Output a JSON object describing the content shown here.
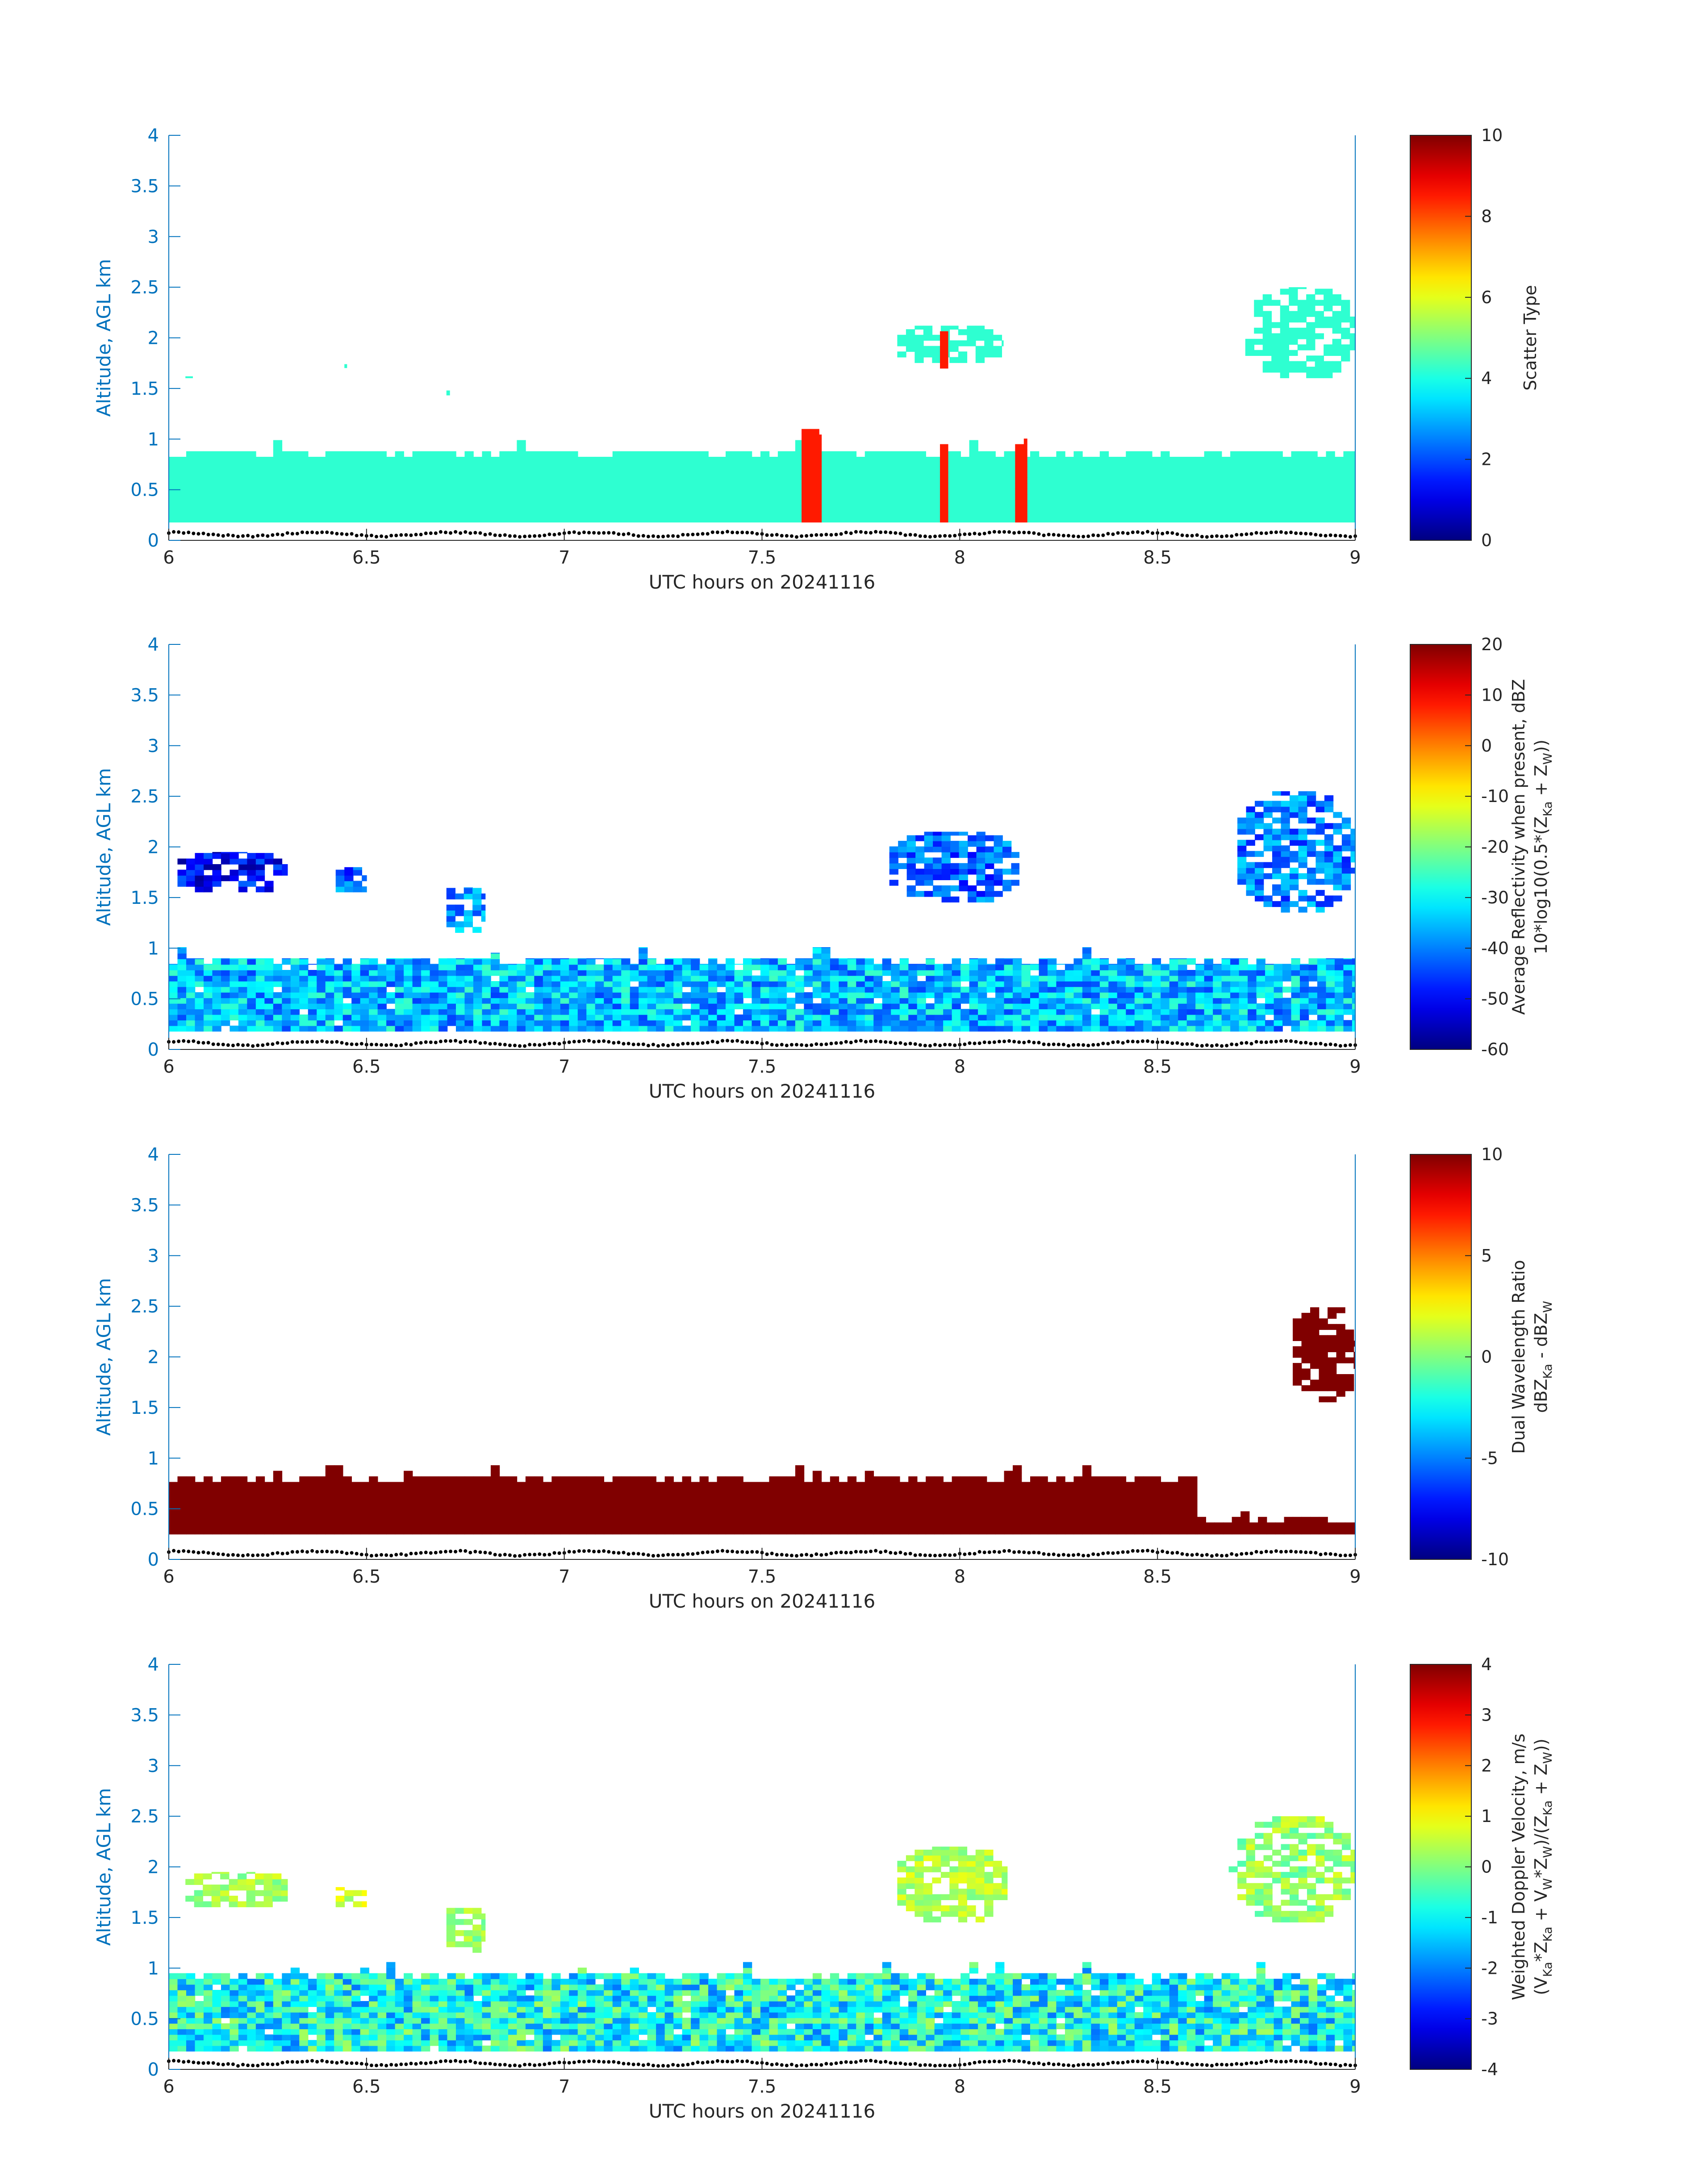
{
  "colors": {
    "axis_blue": "#0072BD",
    "scatter_cyan": "#1EF5D6",
    "scatter_red": "#FF4A10",
    "dwr_darkred": "#800000",
    "marker": "#000000"
  },
  "colormap": "jet",
  "chart_data": [
    {
      "type": "heatmap",
      "title": "",
      "xlabel": "UTC hours on 20241116",
      "ylabel": "Altitude, AGL km",
      "xlim": [
        6,
        9
      ],
      "ylim": [
        0,
        4
      ],
      "xticks": [
        "6",
        "6.5",
        "7",
        "7.5",
        "8",
        "8.5",
        "9"
      ],
      "yticks": [
        "0",
        "0.5",
        "1",
        "1.5",
        "2",
        "2.5",
        "3",
        "3.5",
        "4"
      ],
      "colorbar": {
        "label_lines": [
          "Scatter Type"
        ],
        "clim": [
          0,
          10
        ],
        "ticks": [
          "0",
          "2",
          "4",
          "6",
          "8",
          "10"
        ]
      },
      "regions": [
        {
          "kind": "layer",
          "x": [
            6.0,
            9.0
          ],
          "y": [
            0.18,
            0.88
          ],
          "value": 4.2,
          "noise": 0
        },
        {
          "kind": "layer",
          "x": [
            7.6,
            7.65
          ],
          "y": [
            0.18,
            1.1
          ],
          "value": 8.5,
          "noise": 0
        },
        {
          "kind": "layer",
          "x": [
            7.95,
            7.97
          ],
          "y": [
            0.18,
            0.95
          ],
          "value": 8.5,
          "noise": 0
        },
        {
          "kind": "layer",
          "x": [
            8.14,
            8.17
          ],
          "y": [
            0.18,
            0.95
          ],
          "value": 8.5,
          "noise": 0
        },
        {
          "kind": "cloud",
          "x": [
            7.82,
            8.11
          ],
          "y": [
            1.7,
            2.12
          ],
          "value": 4.2,
          "noise": 0
        },
        {
          "kind": "layer",
          "x": [
            7.95,
            7.97
          ],
          "y": [
            1.7,
            2.12
          ],
          "value": 8.5,
          "noise": 0
        },
        {
          "kind": "cloud",
          "x": [
            8.7,
            9.0
          ],
          "y": [
            1.55,
            2.5
          ],
          "value": 4.2,
          "noise": 0
        },
        {
          "kind": "cloud",
          "x": [
            6.02,
            6.06
          ],
          "y": [
            1.55,
            1.62
          ],
          "value": 4.2,
          "noise": 0
        },
        {
          "kind": "cloud",
          "x": [
            6.4,
            6.45
          ],
          "y": [
            1.65,
            1.74
          ],
          "value": 4.2,
          "noise": 0
        },
        {
          "kind": "cloud",
          "x": [
            6.68,
            6.71
          ],
          "y": [
            1.38,
            1.48
          ],
          "value": 4.2,
          "noise": 0
        }
      ]
    },
    {
      "type": "heatmap",
      "title": "",
      "xlabel": "UTC hours on 20241116",
      "ylabel": "Altitude, AGL km",
      "xlim": [
        6,
        9
      ],
      "ylim": [
        0,
        4
      ],
      "xticks": [
        "6",
        "6.5",
        "7",
        "7.5",
        "8",
        "8.5",
        "9"
      ],
      "yticks": [
        "0",
        "0.5",
        "1",
        "1.5",
        "2",
        "2.5",
        "3",
        "3.5",
        "4"
      ],
      "colorbar": {
        "label_lines": [
          "Average Reflectivity when present, dBZ",
          "10*log10(0.5*(Z_Ka + Z_W))"
        ],
        "clim": [
          -60,
          20
        ],
        "ticks": [
          "-60",
          "-50",
          "-40",
          "-30",
          "-20",
          "-10",
          "0",
          "10",
          "20"
        ]
      },
      "regions": [
        {
          "kind": "layer",
          "x": [
            6.0,
            9.0
          ],
          "y": [
            0.18,
            0.9
          ],
          "value": -35,
          "noise": 10
        },
        {
          "kind": "cloud",
          "x": [
            7.8,
            8.15
          ],
          "y": [
            1.4,
            2.15
          ],
          "value": -42,
          "noise": 8
        },
        {
          "kind": "cloud",
          "x": [
            8.68,
            9.0
          ],
          "y": [
            1.3,
            2.55
          ],
          "value": -40,
          "noise": 8
        },
        {
          "kind": "cloud",
          "x": [
            6.0,
            6.3
          ],
          "y": [
            1.5,
            1.95
          ],
          "value": -50,
          "noise": 8
        },
        {
          "kind": "cloud",
          "x": [
            6.4,
            6.5
          ],
          "y": [
            1.5,
            1.8
          ],
          "value": -42,
          "noise": 8
        },
        {
          "kind": "cloud",
          "x": [
            6.68,
            6.8
          ],
          "y": [
            1.1,
            1.6
          ],
          "value": -38,
          "noise": 8
        }
      ]
    },
    {
      "type": "heatmap",
      "title": "",
      "xlabel": "UTC hours on 20241116",
      "ylabel": "Altitude, AGL km",
      "xlim": [
        6,
        9
      ],
      "ylim": [
        0,
        4
      ],
      "xticks": [
        "6",
        "6.5",
        "7",
        "7.5",
        "8",
        "8.5",
        "9"
      ],
      "yticks": [
        "0",
        "0.5",
        "1",
        "1.5",
        "2",
        "2.5",
        "3",
        "3.5",
        "4"
      ],
      "colorbar": {
        "label_lines": [
          "Dual Wavelength Ratio",
          "dBZ_Ka - dBZ_W"
        ],
        "clim": [
          -10,
          10
        ],
        "ticks": [
          "-10",
          "-5",
          "0",
          "5",
          "10"
        ]
      },
      "regions": [
        {
          "kind": "layer",
          "x": [
            6.0,
            8.6
          ],
          "y": [
            0.25,
            0.82
          ],
          "value": 10,
          "noise": 0
        },
        {
          "kind": "layer",
          "x": [
            8.6,
            9.0
          ],
          "y": [
            0.25,
            0.42
          ],
          "value": 10,
          "noise": 0
        },
        {
          "kind": "cloud",
          "x": [
            8.82,
            9.0
          ],
          "y": [
            1.5,
            2.5
          ],
          "value": 10,
          "noise": 0
        }
      ]
    },
    {
      "type": "heatmap",
      "title": "",
      "xlabel": "UTC hours on 20241116",
      "ylabel": "Altitude, AGL km",
      "xlim": [
        6,
        9
      ],
      "ylim": [
        0,
        4
      ],
      "xticks": [
        "6",
        "6.5",
        "7",
        "7.5",
        "8",
        "8.5",
        "9"
      ],
      "yticks": [
        "0",
        "0.5",
        "1",
        "1.5",
        "2",
        "2.5",
        "3",
        "3.5",
        "4"
      ],
      "colorbar": {
        "label_lines": [
          "Weighted Doppler Velocity, m/s",
          "(V_Ka*Z_Ka + V_W*Z_W)/(Z_Ka + Z_W))"
        ],
        "clim": [
          -4,
          4
        ],
        "ticks": [
          "-4",
          "-3",
          "-2",
          "-1",
          "0",
          "1",
          "2",
          "3",
          "4"
        ]
      },
      "regions": [
        {
          "kind": "layer",
          "x": [
            6.0,
            9.0
          ],
          "y": [
            0.18,
            0.95
          ],
          "value": -0.9,
          "noise": 1.2
        },
        {
          "kind": "cloud",
          "x": [
            7.82,
            8.12
          ],
          "y": [
            1.4,
            2.2
          ],
          "value": 0.4,
          "noise": 0.5
        },
        {
          "kind": "cloud",
          "x": [
            8.68,
            9.0
          ],
          "y": [
            1.4,
            2.5
          ],
          "value": 0.2,
          "noise": 0.6
        },
        {
          "kind": "cloud",
          "x": [
            6.02,
            6.3
          ],
          "y": [
            1.55,
            1.95
          ],
          "value": 0.3,
          "noise": 0.5
        },
        {
          "kind": "cloud",
          "x": [
            6.4,
            6.5
          ],
          "y": [
            1.55,
            1.8
          ],
          "value": 0.6,
          "noise": 0.5
        },
        {
          "kind": "cloud",
          "x": [
            6.68,
            6.8
          ],
          "y": [
            1.1,
            1.6
          ],
          "value": 0.2,
          "noise": 0.5
        }
      ]
    }
  ]
}
